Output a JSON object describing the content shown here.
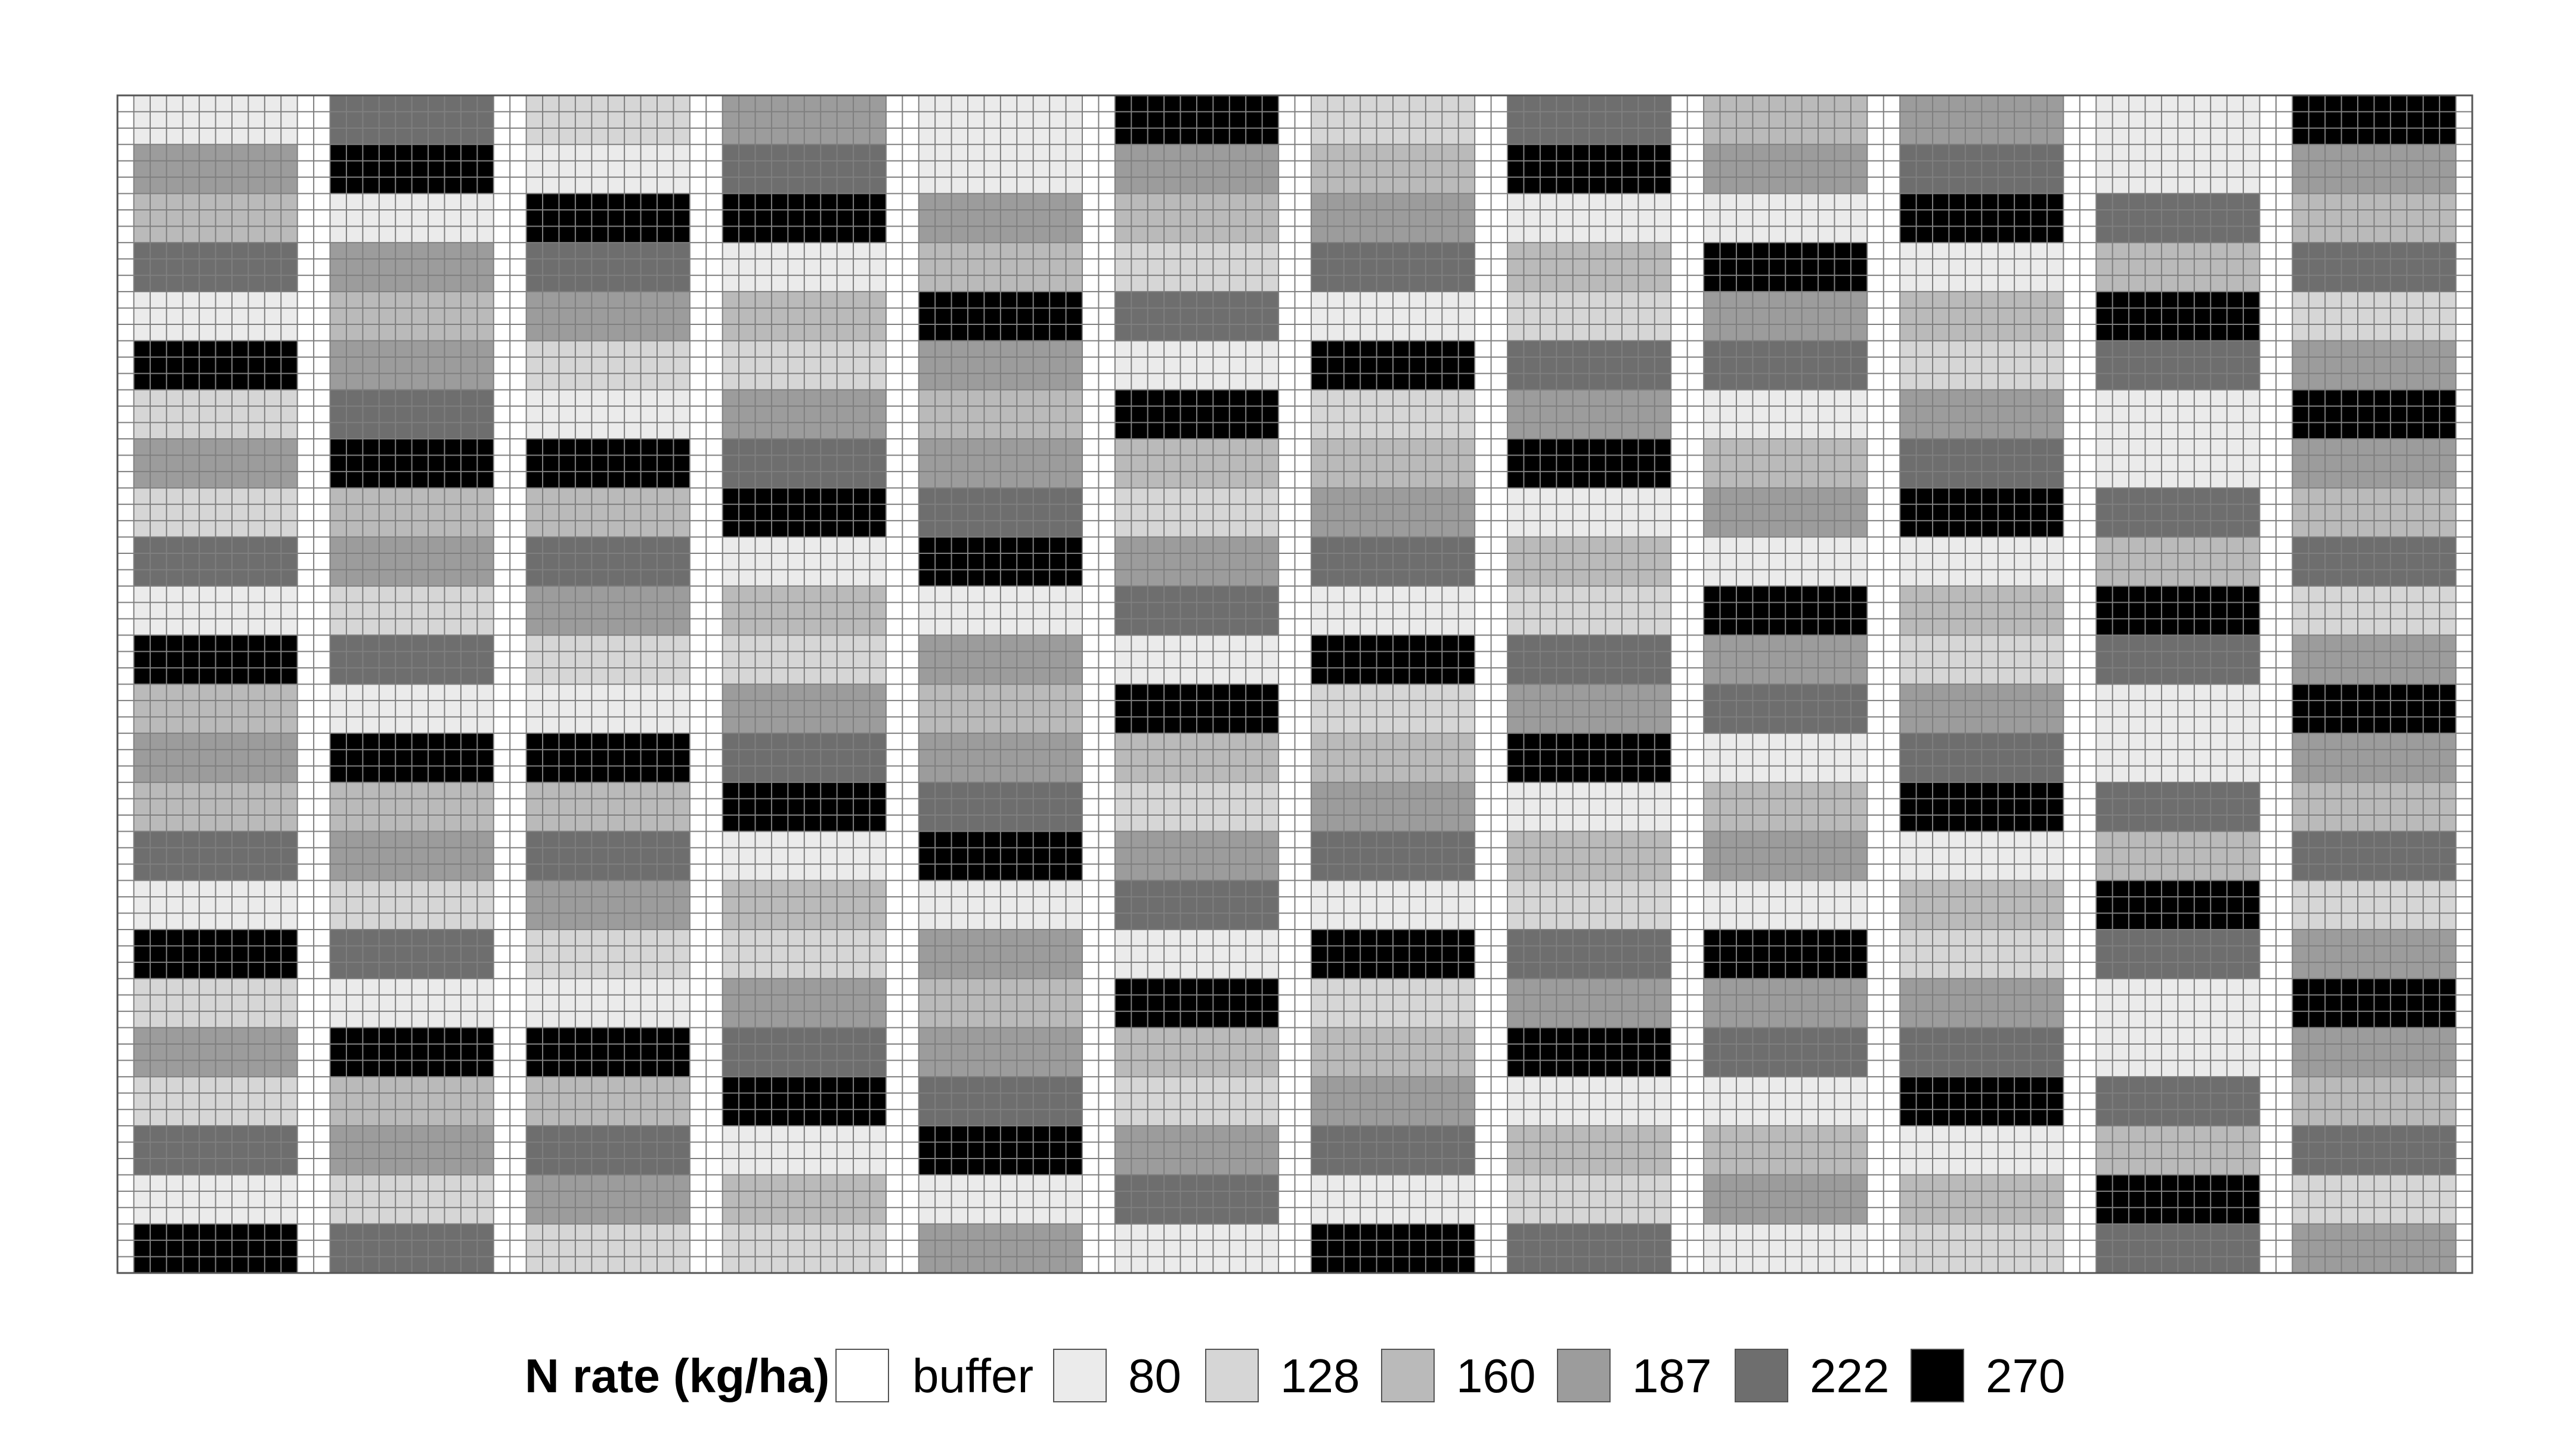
{
  "chart_data": {
    "type": "heatmap",
    "title": "",
    "xlabel": "",
    "ylabel": "",
    "grid": "on",
    "legend_placement": "bottom",
    "legend": {
      "title": "N rate (kg/ha)",
      "items": [
        {
          "label": "buffer",
          "value": null,
          "color": "#ffffff"
        },
        {
          "label": "80",
          "value": 80,
          "color": "#ebebeb"
        },
        {
          "label": "128",
          "value": 128,
          "color": "#d6d6d6"
        },
        {
          "label": "160",
          "value": 160,
          "color": "#bababa"
        },
        {
          "label": "187",
          "value": 187,
          "color": "#9c9c9c"
        },
        {
          "label": "222",
          "value": 222,
          "color": "#6e6e6e"
        },
        {
          "label": "270",
          "value": 270,
          "color": "#000000"
        }
      ]
    },
    "plot_columns": 12,
    "plot_rows": 24,
    "rates": [
      [
        80,
        187,
        160,
        222,
        80,
        270,
        128,
        187,
        128,
        222,
        80,
        270,
        160,
        187,
        160,
        222,
        80,
        270,
        128,
        187,
        128,
        222,
        80,
        270
      ],
      [
        222,
        270,
        80,
        187,
        160,
        187,
        222,
        270,
        160,
        187,
        128,
        222,
        80,
        270,
        160,
        187,
        128,
        222,
        80,
        270,
        160,
        187,
        128,
        222
      ],
      [
        128,
        80,
        270,
        222,
        187,
        128,
        80,
        270,
        160,
        222,
        187,
        128,
        80,
        270,
        160,
        222,
        187,
        128,
        80,
        270,
        160,
        222,
        187,
        128
      ],
      [
        187,
        222,
        270,
        80,
        160,
        128,
        187,
        222,
        270,
        80,
        160,
        128,
        187,
        222,
        270,
        80,
        160,
        128,
        187,
        222,
        270,
        80,
        160,
        128
      ],
      [
        80,
        80,
        187,
        160,
        270,
        187,
        160,
        187,
        222,
        270,
        80,
        187,
        160,
        187,
        222,
        270,
        80,
        187,
        160,
        187,
        222,
        270,
        80,
        187
      ],
      [
        270,
        187,
        160,
        128,
        222,
        80,
        270,
        160,
        128,
        187,
        222,
        80,
        270,
        160,
        128,
        187,
        222,
        80,
        270,
        160,
        128,
        187,
        222,
        80
      ],
      [
        128,
        160,
        187,
        222,
        80,
        270,
        128,
        160,
        187,
        222,
        80,
        270,
        128,
        160,
        187,
        222,
        80,
        270,
        128,
        160,
        187,
        222,
        80,
        270
      ],
      [
        222,
        270,
        80,
        160,
        128,
        222,
        187,
        270,
        80,
        160,
        128,
        222,
        187,
        270,
        80,
        160,
        128,
        222,
        187,
        270,
        80,
        160,
        128,
        222
      ],
      [
        160,
        187,
        80,
        270,
        187,
        222,
        80,
        160,
        187,
        80,
        270,
        187,
        222,
        80,
        160,
        187,
        80,
        270,
        187,
        222,
        80,
        160,
        187,
        80
      ],
      [
        187,
        222,
        270,
        80,
        160,
        128,
        187,
        222,
        270,
        80,
        160,
        128,
        187,
        222,
        270,
        80,
        160,
        128,
        187,
        222,
        270,
        80,
        160,
        128
      ],
      [
        80,
        80,
        222,
        160,
        270,
        222,
        80,
        80,
        222,
        160,
        270,
        222,
        80,
        80,
        222,
        160,
        270,
        222,
        80,
        80,
        222,
        160,
        270,
        222
      ],
      [
        270,
        187,
        160,
        222,
        128,
        187,
        270,
        187,
        160,
        222,
        128,
        187,
        270,
        187,
        160,
        222,
        128,
        187,
        270,
        187,
        160,
        222,
        128,
        187
      ]
    ]
  }
}
